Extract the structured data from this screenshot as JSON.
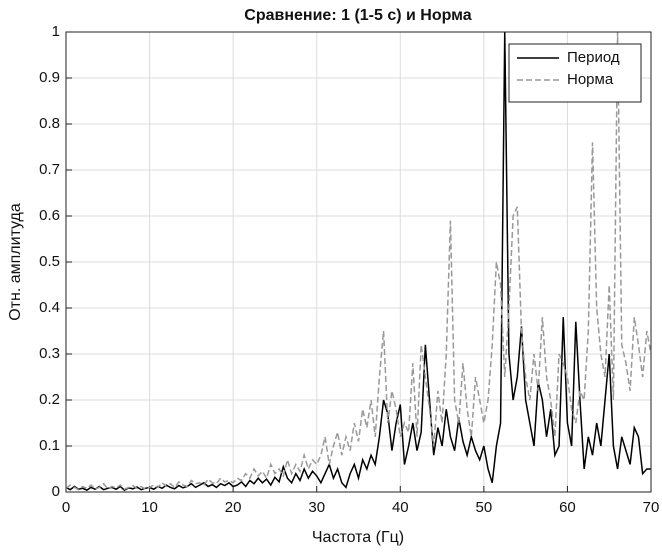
{
  "chart_data": {
    "type": "line",
    "title": "Сравнение: 1 (1-5 с) и Норма",
    "xlabel": "Частота (Гц)",
    "ylabel": "Отн. амплитуда",
    "x": [
      0,
      0.5,
      1,
      1.5,
      2,
      2.5,
      3,
      3.5,
      4,
      4.5,
      5,
      5.5,
      6,
      6.5,
      7,
      7.5,
      8,
      8.5,
      9,
      9.5,
      10,
      10.5,
      11,
      11.5,
      12,
      12.5,
      13,
      13.5,
      14,
      14.5,
      15,
      15.5,
      16,
      16.5,
      17,
      17.5,
      18,
      18.5,
      19,
      19.5,
      20,
      20.5,
      21,
      21.5,
      22,
      22.5,
      23,
      23.5,
      24,
      24.5,
      25,
      25.5,
      26,
      26.5,
      27,
      27.5,
      28,
      28.5,
      29,
      29.5,
      30,
      30.5,
      31,
      31.5,
      32,
      32.5,
      33,
      33.5,
      34,
      34.5,
      35,
      35.5,
      36,
      36.5,
      37,
      37.5,
      38,
      38.5,
      39,
      39.5,
      40,
      40.5,
      41,
      41.5,
      42,
      42.5,
      43,
      43.5,
      44,
      44.5,
      45,
      45.5,
      46,
      46.5,
      47,
      47.5,
      48,
      48.5,
      49,
      49.5,
      50,
      50.5,
      51,
      51.5,
      52,
      52.5,
      53,
      53.5,
      54,
      54.5,
      55,
      55.5,
      56,
      56.5,
      57,
      57.5,
      58,
      58.5,
      59,
      59.5,
      60,
      60.5,
      61,
      61.5,
      62,
      62.5,
      63,
      63.5,
      64,
      64.5,
      65,
      65.5,
      66,
      66.5,
      67,
      67.5,
      68,
      68.5,
      69,
      69.5,
      70
    ],
    "series": [
      {
        "name": "Период",
        "color": "#000000",
        "line_style": "solid",
        "values": [
          0.01,
          0.005,
          0.012,
          0.006,
          0.008,
          0.004,
          0.01,
          0.006,
          0.012,
          0.005,
          0.008,
          0.01,
          0.006,
          0.012,
          0.004,
          0.009,
          0.007,
          0.011,
          0.005,
          0.008,
          0.01,
          0.006,
          0.012,
          0.008,
          0.015,
          0.01,
          0.007,
          0.014,
          0.009,
          0.012,
          0.018,
          0.01,
          0.015,
          0.02,
          0.012,
          0.016,
          0.01,
          0.018,
          0.014,
          0.02,
          0.012,
          0.015,
          0.022,
          0.012,
          0.025,
          0.018,
          0.03,
          0.02,
          0.028,
          0.015,
          0.032,
          0.022,
          0.055,
          0.03,
          0.02,
          0.04,
          0.025,
          0.05,
          0.03,
          0.045,
          0.035,
          0.02,
          0.04,
          0.06,
          0.03,
          0.05,
          0.02,
          0.01,
          0.04,
          0.06,
          0.03,
          0.07,
          0.05,
          0.08,
          0.06,
          0.12,
          0.2,
          0.17,
          0.09,
          0.15,
          0.19,
          0.06,
          0.1,
          0.15,
          0.09,
          0.13,
          0.32,
          0.2,
          0.08,
          0.14,
          0.1,
          0.18,
          0.12,
          0.09,
          0.16,
          0.11,
          0.08,
          0.12,
          0.09,
          0.07,
          0.1,
          0.05,
          0.02,
          0.1,
          0.15,
          1.0,
          0.3,
          0.2,
          0.25,
          0.36,
          0.2,
          0.15,
          0.1,
          0.24,
          0.2,
          0.12,
          0.18,
          0.08,
          0.1,
          0.38,
          0.15,
          0.1,
          0.37,
          0.2,
          0.05,
          0.12,
          0.08,
          0.15,
          0.1,
          0.2,
          0.3,
          0.1,
          0.05,
          0.12,
          0.09,
          0.06,
          0.14,
          0.12,
          0.04,
          0.05,
          0.05
        ]
      },
      {
        "name": "Норма",
        "color": "#999999",
        "line_style": "dashed",
        "values": [
          0.008,
          0.015,
          0.01,
          0.005,
          0.012,
          0.008,
          0.015,
          0.006,
          0.01,
          0.018,
          0.007,
          0.012,
          0.009,
          0.015,
          0.006,
          0.01,
          0.014,
          0.008,
          0.012,
          0.006,
          0.01,
          0.015,
          0.01,
          0.02,
          0.012,
          0.018,
          0.01,
          0.022,
          0.015,
          0.012,
          0.025,
          0.018,
          0.02,
          0.015,
          0.028,
          0.02,
          0.018,
          0.03,
          0.022,
          0.025,
          0.02,
          0.03,
          0.025,
          0.04,
          0.03,
          0.05,
          0.035,
          0.045,
          0.03,
          0.06,
          0.04,
          0.05,
          0.035,
          0.07,
          0.04,
          0.06,
          0.045,
          0.08,
          0.05,
          0.07,
          0.06,
          0.08,
          0.12,
          0.06,
          0.1,
          0.13,
          0.08,
          0.12,
          0.09,
          0.15,
          0.11,
          0.18,
          0.14,
          0.2,
          0.12,
          0.25,
          0.35,
          0.15,
          0.22,
          0.18,
          0.12,
          0.15,
          0.13,
          0.28,
          0.12,
          0.32,
          0.25,
          0.18,
          0.1,
          0.22,
          0.15,
          0.3,
          0.59,
          0.2,
          0.15,
          0.28,
          0.18,
          0.12,
          0.25,
          0.2,
          0.15,
          0.2,
          0.32,
          0.5,
          0.45,
          0.25,
          0.4,
          0.6,
          0.62,
          0.35,
          0.25,
          0.2,
          0.3,
          0.22,
          0.38,
          0.25,
          0.2,
          0.12,
          0.3,
          0.28,
          0.25,
          0.18,
          0.15,
          0.22,
          0.2,
          0.35,
          0.76,
          0.4,
          0.3,
          0.25,
          0.45,
          0.2,
          1.0,
          0.32,
          0.28,
          0.22,
          0.38,
          0.32,
          0.25,
          0.35,
          0.3
        ]
      }
    ],
    "xlim": [
      0,
      70
    ],
    "xticks": [
      0,
      10,
      20,
      30,
      40,
      50,
      60,
      70
    ],
    "ylim": [
      0,
      1
    ],
    "yticks": [
      0,
      0.1,
      0.2,
      0.3,
      0.4,
      0.5,
      0.6,
      0.7,
      0.8,
      0.9,
      1
    ],
    "grid": true,
    "legend": "northeast"
  }
}
